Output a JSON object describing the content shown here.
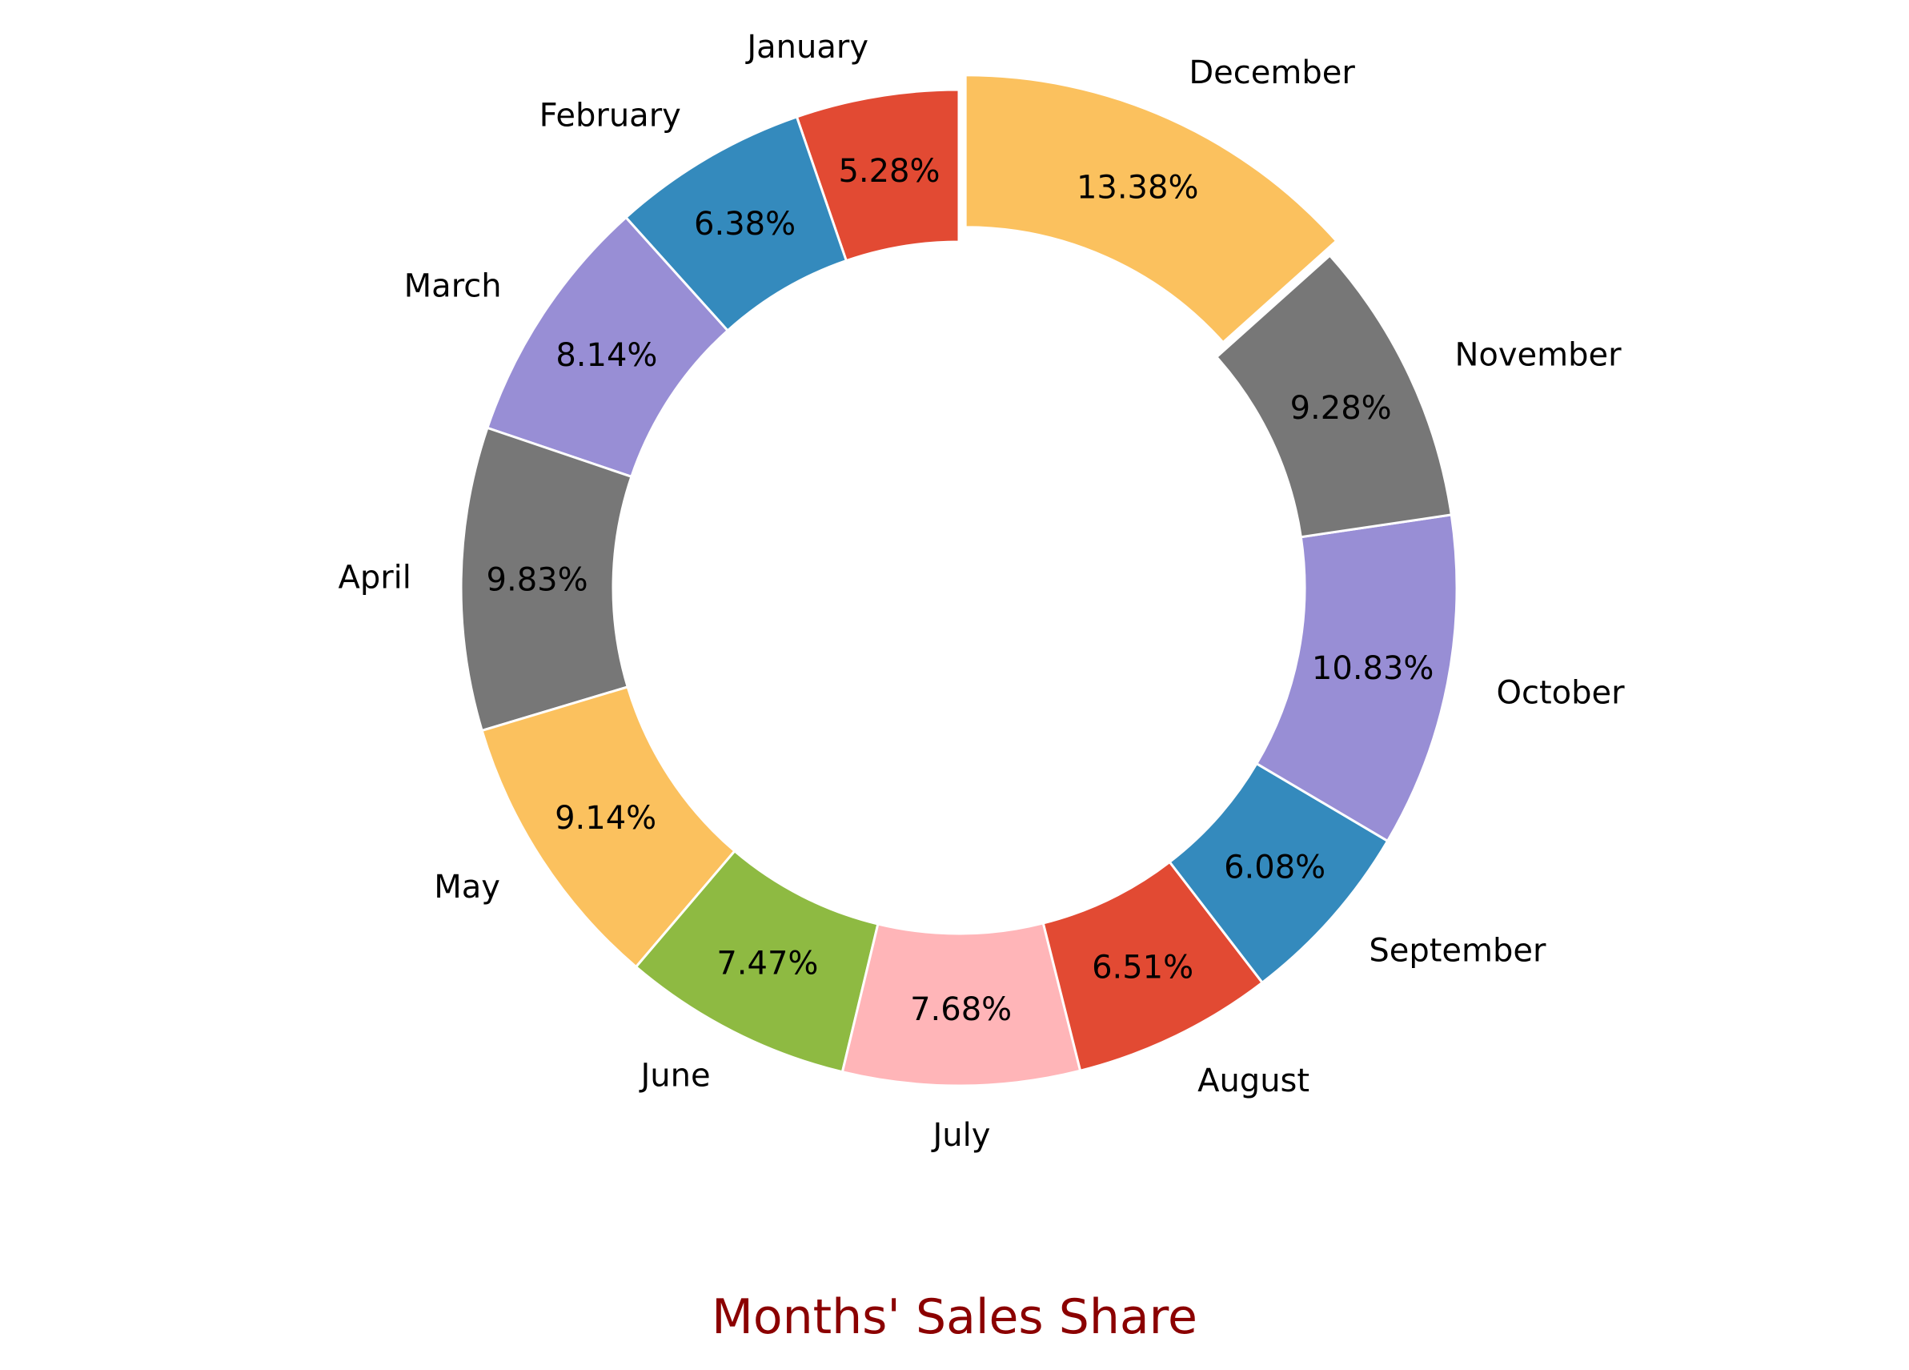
{
  "chart_data": {
    "type": "pie",
    "style": "donut",
    "title": "Months' Sales Share",
    "title_color": "#8b0000",
    "start": "top",
    "direction": "counterclockwise",
    "exploded": [
      "December"
    ],
    "slices": [
      {
        "label": "January",
        "value": 5.28,
        "pct_label": "5.28%",
        "color": "#e24a33"
      },
      {
        "label": "February",
        "value": 6.38,
        "pct_label": "6.38%",
        "color": "#348abd"
      },
      {
        "label": "March",
        "value": 8.14,
        "pct_label": "8.14%",
        "color": "#988ed5"
      },
      {
        "label": "April",
        "value": 9.83,
        "pct_label": "9.83%",
        "color": "#777777"
      },
      {
        "label": "May",
        "value": 9.14,
        "pct_label": "9.14%",
        "color": "#fbc15e"
      },
      {
        "label": "June",
        "value": 7.47,
        "pct_label": "7.47%",
        "color": "#8eba42"
      },
      {
        "label": "July",
        "value": 7.68,
        "pct_label": "7.68%",
        "color": "#ffb5b8"
      },
      {
        "label": "August",
        "value": 6.51,
        "pct_label": "6.51%",
        "color": "#e24a33"
      },
      {
        "label": "September",
        "value": 6.08,
        "pct_label": "6.08%",
        "color": "#348abd"
      },
      {
        "label": "October",
        "value": 10.83,
        "pct_label": "10.83%",
        "color": "#988ed5"
      },
      {
        "label": "November",
        "value": 9.28,
        "pct_label": "9.28%",
        "color": "#777777"
      },
      {
        "label": "December",
        "value": 13.38,
        "pct_label": "13.38%",
        "color": "#fbc15e"
      }
    ]
  }
}
